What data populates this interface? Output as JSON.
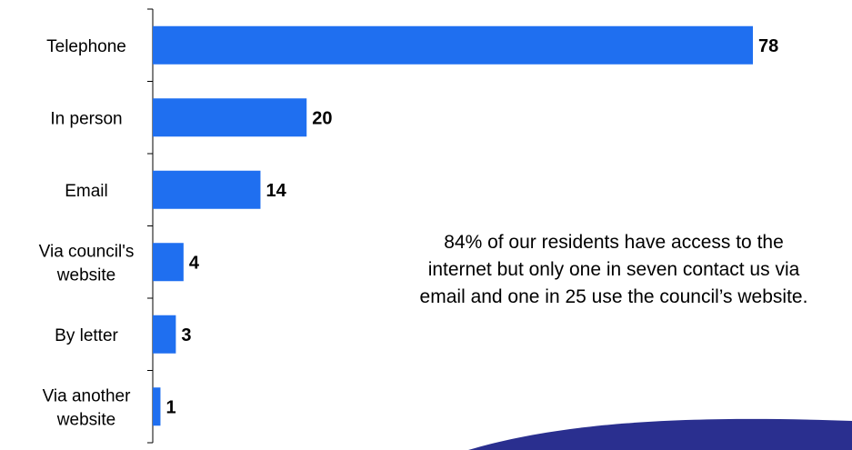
{
  "chart_data": {
    "type": "bar",
    "orientation": "horizontal",
    "categories": [
      [
        "Telephone"
      ],
      [
        "In person"
      ],
      [
        "Email"
      ],
      [
        "Via council's",
        "website"
      ],
      [
        "By letter"
      ],
      [
        "Via another",
        "website"
      ]
    ],
    "values": [
      78,
      20,
      14,
      4,
      3,
      1
    ],
    "value_labels": [
      "78",
      "20",
      "14",
      "4",
      "3",
      "1"
    ],
    "bar_color": "#1f6ff0",
    "grid": false,
    "annotation": "84% of our residents have access to the internet but only one in seven contact us via email and one in 25 use the council’s website.",
    "decoration_color": "#2a2f8f"
  }
}
